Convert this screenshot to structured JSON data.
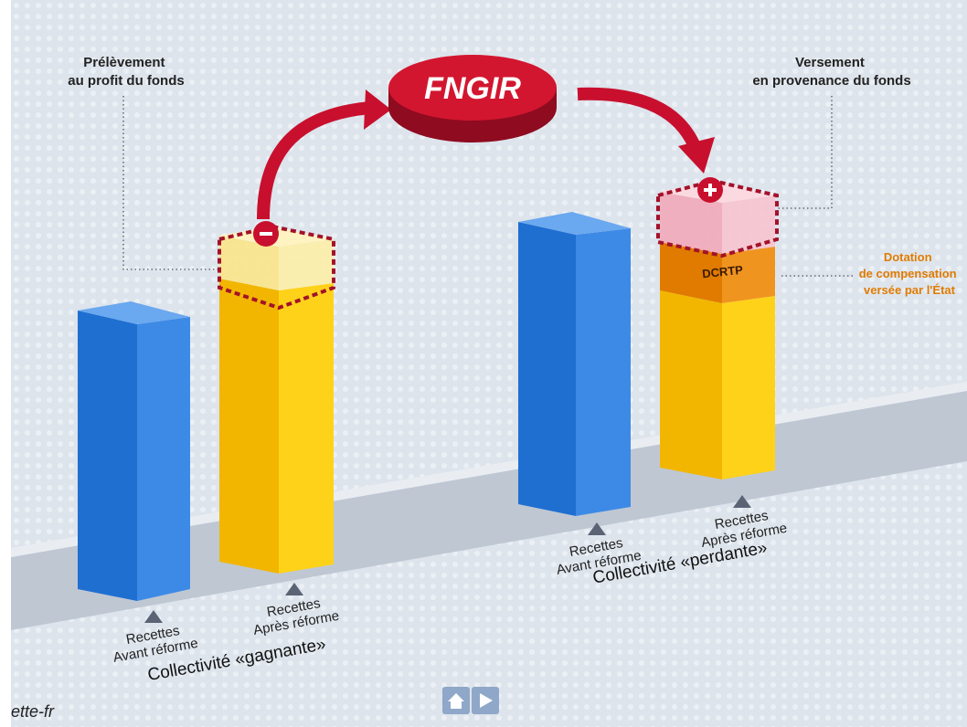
{
  "labels": {
    "left_note": [
      "Prélèvement",
      "au profit du fonds"
    ],
    "fund": "FNGIR",
    "right_note": [
      "Versement",
      "en provenance du fonds"
    ],
    "dotation": [
      "Dotation",
      "de compensation",
      "versée par l'État"
    ],
    "dcrtp": "DCRTP",
    "bars": [
      [
        "Recettes",
        "Avant réforme"
      ],
      [
        "Recettes",
        "Après réforme"
      ],
      [
        "Recettes",
        "Avant réforme"
      ],
      [
        "Recettes",
        "Après réforme"
      ]
    ],
    "groups": [
      "Collectivité «gagnante»",
      "Collectivité «perdante»"
    ],
    "footer": "ette-fr"
  }
}
